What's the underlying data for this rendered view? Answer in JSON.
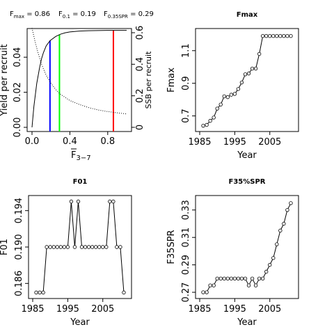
{
  "header": {
    "fmax": {
      "sym": "F",
      "sub": "max",
      "val": " = 0.86"
    },
    "f01": {
      "sym": "F",
      "sub": "0.1",
      "val": " = 0.19"
    },
    "fspr": {
      "sym": "F",
      "sub": "0.35SPR",
      "val": " = 0.29"
    }
  },
  "chart_data": [
    {
      "type": "line",
      "title": "",
      "xlabel": "F",
      "xlabel_overline": true,
      "xlabel_sub": "3−7",
      "ylabel": "Yield per recruit",
      "y2label": "SSB per recruit",
      "xlim": [
        0.0,
        1.0
      ],
      "ylim": [
        0.0,
        0.05
      ],
      "y2lim": [
        0.0,
        0.6
      ],
      "xticks": [
        "0.0",
        "0.4",
        "0.8"
      ],
      "yticks": [
        "0.00",
        "0.02",
        "0.04"
      ],
      "y2ticks": [
        "0",
        "0.2",
        "0.4",
        "0.6"
      ],
      "series": [
        {
          "style": "solid",
          "axis": "left",
          "x": [
            0.0,
            0.02,
            0.05,
            0.08,
            0.1,
            0.12,
            0.15,
            0.19,
            0.25,
            0.3,
            0.35,
            0.4,
            0.5,
            0.6,
            0.7,
            0.8,
            0.86,
            0.9,
            1.0
          ],
          "values": [
            0.0,
            0.012,
            0.025,
            0.034,
            0.039,
            0.0425,
            0.0465,
            0.0494,
            0.0518,
            0.0531,
            0.0539,
            0.0544,
            0.0549,
            0.0551,
            0.0552,
            0.0553,
            0.0553,
            0.0553,
            0.0553
          ]
        },
        {
          "style": "dotted",
          "axis": "right",
          "x": [
            0.0,
            0.03,
            0.06,
            0.1,
            0.15,
            0.2,
            0.25,
            0.3,
            0.4,
            0.5,
            0.6,
            0.7,
            0.8,
            0.9,
            1.0
          ],
          "values": [
            0.63,
            0.55,
            0.48,
            0.4,
            0.33,
            0.28,
            0.24,
            0.21,
            0.17,
            0.145,
            0.125,
            0.11,
            0.1,
            0.092,
            0.085
          ]
        }
      ],
      "reference_lines": [
        {
          "x": 0.19,
          "color": "#0000ff"
        },
        {
          "x": 0.29,
          "color": "#00ff00"
        },
        {
          "x": 0.86,
          "color": "#ff0000"
        }
      ]
    },
    {
      "type": "scatter",
      "title": "Fmax",
      "xlabel": "Year",
      "ylabel": "Fmax",
      "xlim": [
        1985,
        2012
      ],
      "ylim": [
        0.63,
        1.21
      ],
      "xticks": [
        "1985",
        "1995",
        "2005"
      ],
      "yticks": [
        "0.7",
        "0.9",
        "1.1"
      ],
      "x": [
        1986,
        1987,
        1988,
        1989,
        1990,
        1991,
        1992,
        1993,
        1994,
        1995,
        1996,
        1997,
        1998,
        1999,
        2000,
        2001,
        2002,
        2003,
        2004,
        2005,
        2006,
        2007,
        2008,
        2009,
        2010,
        2011
      ],
      "values": [
        0.64,
        0.645,
        0.67,
        0.69,
        0.745,
        0.77,
        0.82,
        0.815,
        0.83,
        0.835,
        0.865,
        0.905,
        0.955,
        0.96,
        0.99,
        0.99,
        1.08,
        1.19,
        1.19,
        1.19,
        1.19,
        1.19,
        1.19,
        1.19,
        1.19,
        1.19
      ]
    },
    {
      "type": "scatter",
      "title": "F01",
      "xlabel": "Year",
      "ylabel": "F01",
      "xlim": [
        1985,
        2012
      ],
      "ylim": [
        0.1848,
        0.1952
      ],
      "xticks": [
        "1985",
        "1995",
        "2005"
      ],
      "yticks": [
        "0.186",
        "0.190",
        "0.194"
      ],
      "x": [
        1986,
        1987,
        1988,
        1989,
        1990,
        1991,
        1992,
        1993,
        1994,
        1995,
        1996,
        1997,
        1998,
        1999,
        2000,
        2001,
        2002,
        2003,
        2004,
        2005,
        2006,
        2007,
        2008,
        2009,
        2010,
        2011
      ],
      "values": [
        0.185,
        0.185,
        0.185,
        0.19,
        0.19,
        0.19,
        0.19,
        0.19,
        0.19,
        0.19,
        0.195,
        0.19,
        0.195,
        0.19,
        0.19,
        0.19,
        0.19,
        0.19,
        0.19,
        0.19,
        0.19,
        0.195,
        0.195,
        0.19,
        0.19,
        0.185
      ]
    },
    {
      "type": "scatter",
      "title": "F35%SPR",
      "xlabel": "Year",
      "ylabel": "F35SPR",
      "xlim": [
        1985,
        2012
      ],
      "ylim": [
        0.2685,
        0.3375
      ],
      "xticks": [
        "1985",
        "1995",
        "2005"
      ],
      "yticks": [
        "0.27",
        "0.29",
        "0.31",
        "0.33"
      ],
      "x": [
        1986,
        1987,
        1988,
        1989,
        1990,
        1991,
        1992,
        1993,
        1994,
        1995,
        1996,
        1997,
        1998,
        1999,
        2000,
        2001,
        2002,
        2003,
        2004,
        2005,
        2006,
        2007,
        2008,
        2009,
        2010,
        2011
      ],
      "values": [
        0.27,
        0.27,
        0.275,
        0.275,
        0.28,
        0.28,
        0.28,
        0.28,
        0.28,
        0.28,
        0.28,
        0.28,
        0.28,
        0.275,
        0.28,
        0.275,
        0.28,
        0.28,
        0.285,
        0.29,
        0.295,
        0.305,
        0.315,
        0.32,
        0.33,
        0.335
      ]
    }
  ]
}
